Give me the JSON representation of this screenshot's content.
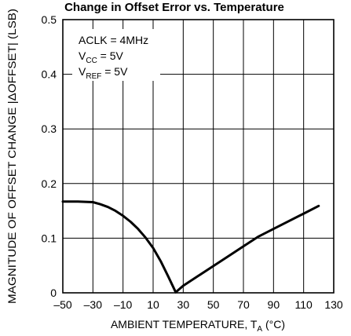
{
  "chart_data": {
    "type": "line",
    "title": "Change in Offset Error vs. Temperature",
    "xlabel": {
      "main": "AMBIENT TEMPERATURE, T",
      "sub": "A",
      "unit": " (°C)"
    },
    "ylabel": "MAGNITUDE OF OFFSET CHANGE |ΔOFFSET| (LSB)",
    "xlim": [
      -50,
      130
    ],
    "ylim": [
      0,
      0.5
    ],
    "x_ticks": [
      -50,
      -30,
      -10,
      10,
      30,
      50,
      70,
      90,
      110,
      130
    ],
    "x_tick_labels": [
      "–50",
      "–30",
      "–10",
      "10",
      "30",
      "50",
      "70",
      "90",
      "110",
      "130"
    ],
    "y_ticks": [
      0,
      0.1,
      0.2,
      0.3,
      0.4,
      0.5
    ],
    "y_tick_labels": [
      "0",
      "0.1",
      "0.2",
      "0.3",
      "0.4",
      "0.5"
    ],
    "grid": true,
    "annotations": [
      {
        "main": "ACLK = 4MHz",
        "sub": "",
        "tail": ""
      },
      {
        "main": "V",
        "sub": "CC",
        "tail": " = 5V"
      },
      {
        "main": "V",
        "sub": "REF",
        "tail": " = 5V"
      }
    ],
    "series": [
      {
        "x": [
          -50,
          -40,
          -30,
          -25,
          -20,
          -15,
          -10,
          -5,
          0,
          5,
          10,
          15,
          20,
          25,
          30,
          40,
          50,
          60,
          70,
          80,
          90,
          100,
          110,
          120
        ],
        "y": [
          0.167,
          0.167,
          0.166,
          0.162,
          0.157,
          0.15,
          0.141,
          0.13,
          0.117,
          0.101,
          0.082,
          0.058,
          0.03,
          0.001,
          0.013,
          0.031,
          0.049,
          0.067,
          0.085,
          0.103,
          0.117,
          0.131,
          0.145,
          0.159
        ]
      }
    ]
  }
}
